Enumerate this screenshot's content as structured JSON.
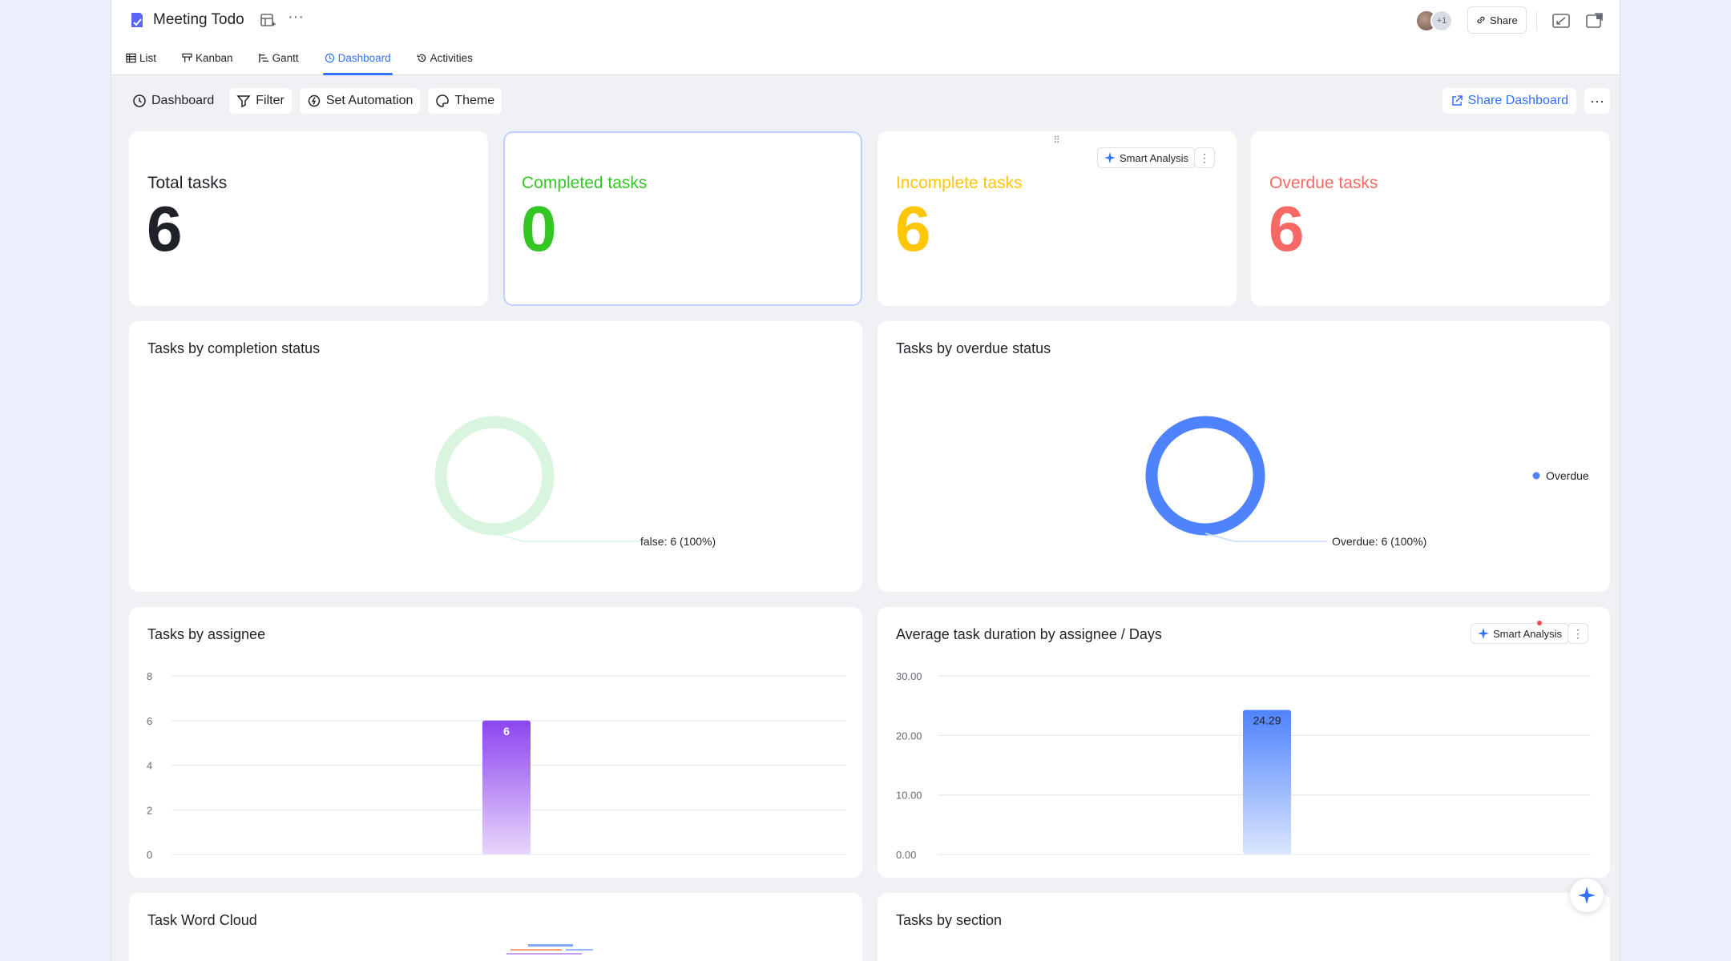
{
  "header": {
    "title": "Meeting Todo",
    "more": "···",
    "avatar_extra": "+1",
    "share_label": "Share"
  },
  "tabs": [
    {
      "label": "List",
      "icon": "table-icon",
      "active": false
    },
    {
      "label": "Kanban",
      "icon": "kanban-icon",
      "active": false
    },
    {
      "label": "Gantt",
      "icon": "gantt-icon",
      "active": false
    },
    {
      "label": "Dashboard",
      "icon": "dashboard-icon",
      "active": true
    },
    {
      "label": "Activities",
      "icon": "history-icon",
      "active": false
    }
  ],
  "toolbar": {
    "dashboard_label": "Dashboard",
    "filter_label": "Filter",
    "automation_label": "Set Automation",
    "theme_label": "Theme",
    "share_dashboard_label": "Share Dashboard",
    "more": "···"
  },
  "kpis": [
    {
      "label": "Total tasks",
      "value": "6",
      "color": "#1f2329"
    },
    {
      "label": "Completed tasks",
      "value": "0",
      "color": "#34c724"
    },
    {
      "label": "Incomplete tasks",
      "value": "6",
      "color": "#ffc60a"
    },
    {
      "label": "Overdue tasks",
      "value": "6",
      "color": "#f76964"
    }
  ],
  "smart_analysis_label": "Smart Analysis",
  "cards": {
    "completion": {
      "title": "Tasks by completion status"
    },
    "overdue": {
      "title": "Tasks by overdue status"
    },
    "assignee": {
      "title": "Tasks by assignee"
    },
    "duration": {
      "title": "Average task duration by assignee / Days"
    },
    "wordcloud": {
      "title": "Task Word Cloud"
    },
    "section": {
      "title": "Tasks by section"
    }
  },
  "chart_data": [
    {
      "type": "pie",
      "title": "Tasks by completion status",
      "labels": [
        "false"
      ],
      "values": [
        6
      ],
      "data_labels": [
        "false: 6 (100%)"
      ],
      "colors": [
        "#d9f5e0"
      ]
    },
    {
      "type": "pie",
      "title": "Tasks by overdue status",
      "labels": [
        "Overdue"
      ],
      "values": [
        6
      ],
      "data_labels": [
        "Overdue: 6 (100%)"
      ],
      "legend": [
        "Overdue"
      ],
      "legend_position": "right",
      "colors": [
        "#4e83fd"
      ]
    },
    {
      "type": "bar",
      "title": "Tasks by assignee",
      "categories": [
        ""
      ],
      "values": [
        6
      ],
      "data_labels": [
        "6"
      ],
      "ylim": [
        0,
        8
      ],
      "yticks": [
        "0",
        "2",
        "4",
        "6",
        "8"
      ],
      "grid": true,
      "colors": [
        "#8c45f0",
        "#e8d6fb"
      ]
    },
    {
      "type": "bar",
      "title": "Average task duration by assignee / Days",
      "categories": [
        ""
      ],
      "values": [
        24.29
      ],
      "data_labels": [
        "24.29"
      ],
      "ylim": [
        0,
        30
      ],
      "yticks": [
        "0.00",
        "10.00",
        "20.00",
        "30.00"
      ],
      "grid": true,
      "colors": [
        "#4e83fd",
        "#dbe6fe"
      ]
    }
  ]
}
